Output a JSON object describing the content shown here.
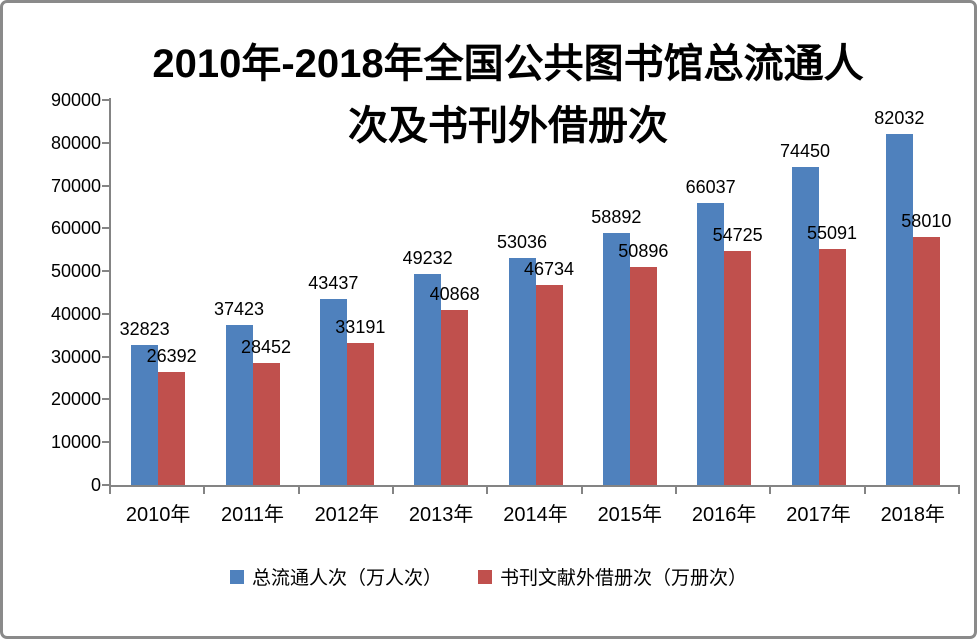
{
  "frame": {
    "background": "#ffffff",
    "border_color": "#8a8a8a"
  },
  "chart_data": {
    "type": "bar",
    "title": "2010年-2018年全国公共图书馆总流通人次及书刊外借册次",
    "title_line1": "2010年-2018年全国公共图书馆总流通人",
    "title_line2": "次及书刊外借册次",
    "categories": [
      "2010年",
      "2011年",
      "2012年",
      "2013年",
      "2014年",
      "2015年",
      "2016年",
      "2017年",
      "2018年"
    ],
    "series": [
      {
        "name": "总流通人次（万人次）",
        "color": "#4F81BD",
        "values": [
          32823,
          37423,
          43437,
          49232,
          53036,
          58892,
          66037,
          74450,
          82032
        ]
      },
      {
        "name": "书刊文献外借册次（万册次）",
        "color": "#C0504D",
        "values": [
          26392,
          28452,
          33191,
          40868,
          46734,
          50896,
          54725,
          55091,
          58010
        ]
      }
    ],
    "ylim": [
      0,
      90000
    ],
    "y_tick_step": 10000,
    "y_ticks": [
      "0",
      "10000",
      "20000",
      "30000",
      "40000",
      "50000",
      "60000",
      "70000",
      "80000",
      "90000"
    ],
    "grid": false,
    "show_data_labels": true,
    "legend_position": "bottom",
    "axis_color": "#848484",
    "text_color": "#000000"
  }
}
